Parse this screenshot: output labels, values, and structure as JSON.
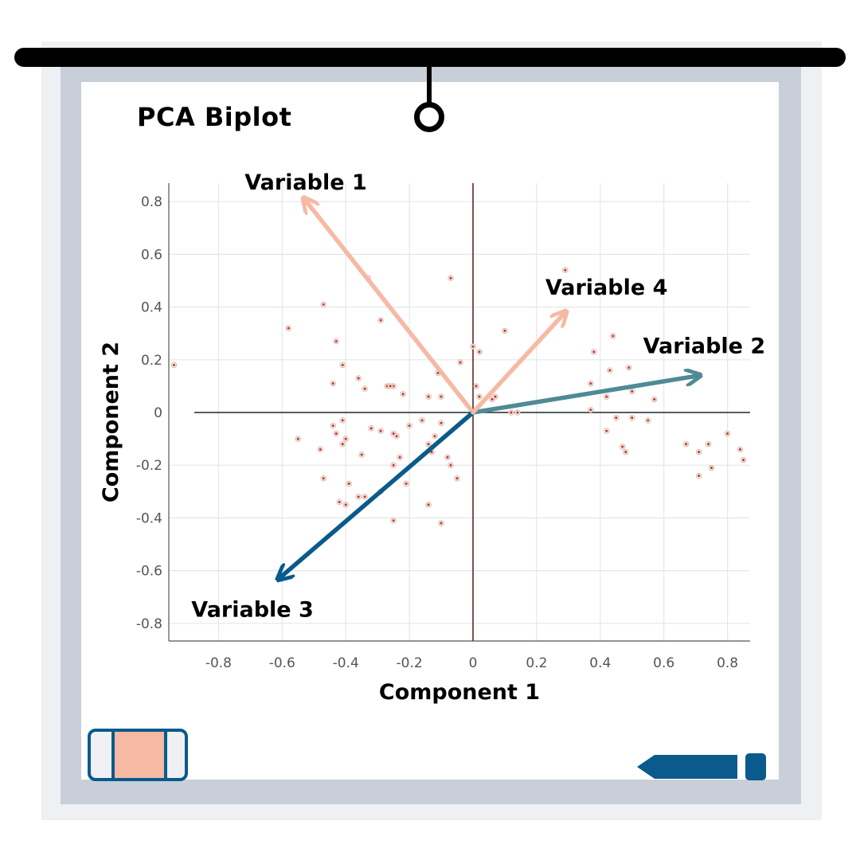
{
  "chart_data": {
    "type": "scatter",
    "title": "PCA Biplot",
    "xlabel": "Component 1",
    "ylabel": "Component 2",
    "xlim": [
      -0.95,
      0.87
    ],
    "ylim": [
      -0.87,
      0.87
    ],
    "xticks": [
      -0.8,
      -0.6,
      -0.4,
      -0.2,
      0,
      0.2,
      0.4,
      0.6,
      0.8
    ],
    "yticks": [
      -0.8,
      -0.6,
      -0.4,
      -0.2,
      0,
      0.2,
      0.4,
      0.6,
      0.8
    ],
    "xtick_labels": [
      "-0.8",
      "-0.6",
      "-0.4",
      "-0.2",
      "0",
      "0.2",
      "0.4",
      "0.6",
      "0.8"
    ],
    "ytick_labels": [
      "-0.8",
      "-0.6",
      "-0.4",
      "-0.2",
      "0",
      "0.2",
      "0.4",
      "0.6",
      "0.8"
    ],
    "grid": true,
    "vectors": [
      {
        "name": "Variable 1",
        "x": -0.53,
        "y": 0.81,
        "color": "#f6b9a3"
      },
      {
        "name": "Variable 2",
        "x": 0.71,
        "y": 0.14,
        "color": "#4f8a96"
      },
      {
        "name": "Variable 3",
        "x": -0.61,
        "y": -0.63,
        "color": "#0a5a8c"
      },
      {
        "name": "Variable 4",
        "x": 0.29,
        "y": 0.38,
        "color": "#f6b9a3"
      }
    ],
    "points": [
      [
        -0.58,
        0.32
      ],
      [
        -0.47,
        0.41
      ],
      [
        -0.33,
        0.51
      ],
      [
        -0.07,
        0.51
      ],
      [
        0.29,
        0.54
      ],
      [
        -0.29,
        0.35
      ],
      [
        -0.43,
        0.27
      ],
      [
        -0.41,
        0.18
      ],
      [
        -0.36,
        0.13
      ],
      [
        -0.34,
        0.09
      ],
      [
        -0.27,
        0.1
      ],
      [
        -0.25,
        0.1
      ],
      [
        -0.44,
        0.11
      ],
      [
        -0.22,
        0.07
      ],
      [
        -0.14,
        0.06
      ],
      [
        -0.1,
        0.06
      ],
      [
        -0.11,
        0.15
      ],
      [
        -0.04,
        0.19
      ],
      [
        0.0,
        0.25
      ],
      [
        0.02,
        0.23
      ],
      [
        0.1,
        0.31
      ],
      [
        0.01,
        0.1
      ],
      [
        0.02,
        0.06
      ],
      [
        0.06,
        0.05
      ],
      [
        0.07,
        0.06
      ],
      [
        0.12,
        0.0
      ],
      [
        0.14,
        0.0
      ],
      [
        0.38,
        0.23
      ],
      [
        0.37,
        0.11
      ],
      [
        0.44,
        0.29
      ],
      [
        0.43,
        0.16
      ],
      [
        0.49,
        0.17
      ],
      [
        0.5,
        0.08
      ],
      [
        0.42,
        0.06
      ],
      [
        0.37,
        0.01
      ],
      [
        0.45,
        -0.02
      ],
      [
        0.5,
        -0.02
      ],
      [
        0.55,
        -0.03
      ],
      [
        0.42,
        -0.07
      ],
      [
        0.47,
        -0.13
      ],
      [
        0.48,
        -0.15
      ],
      [
        0.57,
        0.05
      ],
      [
        0.67,
        -0.12
      ],
      [
        0.71,
        -0.15
      ],
      [
        0.74,
        -0.12
      ],
      [
        0.8,
        -0.08
      ],
      [
        0.84,
        -0.14
      ],
      [
        0.85,
        -0.18
      ],
      [
        0.71,
        -0.24
      ],
      [
        0.75,
        -0.21
      ],
      [
        -0.55,
        -0.1
      ],
      [
        -0.48,
        -0.14
      ],
      [
        -0.44,
        -0.05
      ],
      [
        -0.43,
        -0.08
      ],
      [
        -0.41,
        -0.03
      ],
      [
        -0.4,
        -0.1
      ],
      [
        -0.41,
        -0.12
      ],
      [
        -0.35,
        -0.16
      ],
      [
        -0.32,
        -0.06
      ],
      [
        -0.29,
        -0.07
      ],
      [
        -0.25,
        -0.08
      ],
      [
        -0.24,
        -0.09
      ],
      [
        -0.2,
        -0.05
      ],
      [
        -0.16,
        -0.03
      ],
      [
        -0.1,
        -0.04
      ],
      [
        -0.12,
        -0.09
      ],
      [
        -0.14,
        -0.12
      ],
      [
        -0.13,
        -0.15
      ],
      [
        -0.08,
        -0.17
      ],
      [
        -0.07,
        -0.2
      ],
      [
        -0.23,
        -0.17
      ],
      [
        -0.25,
        -0.2
      ],
      [
        -0.21,
        -0.27
      ],
      [
        -0.05,
        -0.25
      ],
      [
        -0.39,
        -0.27
      ],
      [
        -0.42,
        -0.34
      ],
      [
        -0.4,
        -0.35
      ],
      [
        -0.36,
        -0.32
      ],
      [
        -0.34,
        -0.32
      ],
      [
        -0.29,
        -0.3
      ],
      [
        -0.25,
        -0.41
      ],
      [
        -0.1,
        -0.42
      ],
      [
        -0.14,
        -0.35
      ],
      [
        -0.47,
        -0.25
      ],
      [
        -0.94,
        0.18
      ],
      [
        -0.26,
        0.1
      ]
    ]
  }
}
